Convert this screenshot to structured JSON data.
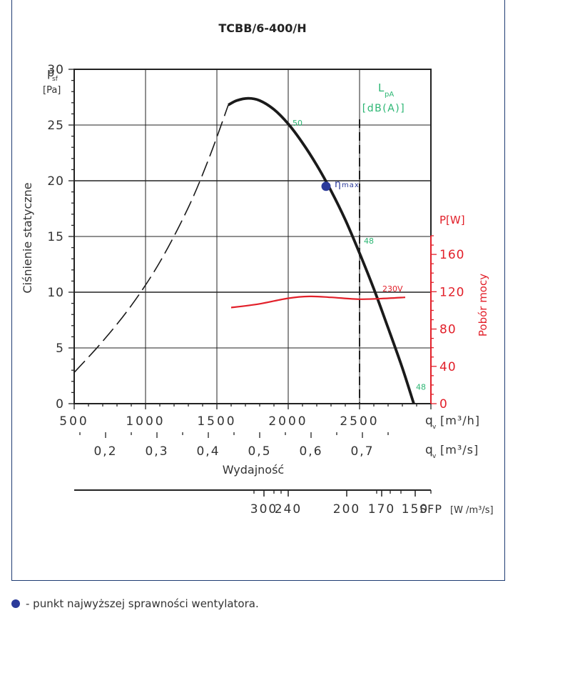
{
  "chart_data": {
    "type": "line",
    "title": "TCBB/6-400/H",
    "xlabel": "Wydajność",
    "ylabel": "Ciśnienie statyczne",
    "y_unit_symbol": "p",
    "y_unit_sub": "sf",
    "y_unit": "[Pa]",
    "ylim": [
      0,
      30
    ],
    "y_ticks": [
      "0",
      "5",
      "10",
      "15",
      "20",
      "25",
      "30"
    ],
    "x_axis_m3h": {
      "xlim": [
        500,
        3000
      ],
      "ticks": [
        {
          "v": 500,
          "label": "500"
        },
        {
          "v": 1000,
          "label": "1000"
        },
        {
          "v": 1500,
          "label": "1500"
        },
        {
          "v": 2000,
          "label": "2000"
        },
        {
          "v": 2500,
          "label": "2500"
        }
      ],
      "unit_symbol": "q",
      "unit_sub": "v",
      "unit": "[m³/h]"
    },
    "x_axis_m3s": {
      "ticks": [
        {
          "v": 0.2,
          "label": "0,2"
        },
        {
          "v": 0.3,
          "label": "0,3"
        },
        {
          "v": 0.4,
          "label": "0,4"
        },
        {
          "v": 0.5,
          "label": "0,5"
        },
        {
          "v": 0.6,
          "label": "0,6"
        },
        {
          "v": 0.7,
          "label": "0,7"
        }
      ],
      "unit_symbol": "q",
      "unit_sub": "v",
      "unit": "[m³/s]"
    },
    "sfp_axis": {
      "unit": "SFP",
      "unit_detail": "[W /m³/s]",
      "ticks": [
        {
          "q": 1830,
          "label": "300"
        },
        {
          "q": 2000,
          "label": "240"
        },
        {
          "q": 2410,
          "label": "200"
        },
        {
          "q": 2655,
          "label": "170"
        },
        {
          "q": 2890,
          "label": "150"
        }
      ]
    },
    "power_axis": {
      "label": "Pobór mocy",
      "unit": "P[W]",
      "ylim": [
        0,
        180
      ],
      "ticks": [
        "0",
        "40",
        "80",
        "120",
        "160"
      ]
    },
    "lpa_label": "L",
    "lpa_sub": "pA",
    "lpa_unit": "[dB(A)]",
    "series": [
      {
        "role": "pressure_unstable",
        "style": "dashed",
        "x": [
          500,
          700,
          900,
          1100,
          1300,
          1450,
          1580
        ],
        "y": [
          2.8,
          5.6,
          8.8,
          12.7,
          17.6,
          22.2,
          26.8
        ]
      },
      {
        "role": "pressure",
        "style": "solid",
        "x": [
          1580,
          1640,
          1720,
          1800,
          1900,
          2000,
          2100,
          2200,
          2300,
          2400,
          2500,
          2600,
          2700,
          2800,
          2880
        ],
        "y": [
          26.8,
          27.2,
          27.4,
          27.2,
          26.4,
          25.1,
          23.4,
          21.4,
          19.1,
          16.5,
          13.5,
          10.3,
          6.8,
          3.2,
          0
        ]
      },
      {
        "name": "230V",
        "role": "power",
        "style": "solid",
        "x": [
          1600,
          1800,
          2000,
          2150,
          2300,
          2500,
          2700,
          2820
        ],
        "y": [
          103,
          107,
          113,
          115,
          114,
          112,
          113,
          114
        ]
      }
    ],
    "eta_max": {
      "x": 2265,
      "y": 19.5,
      "label": "η",
      "label_sub": "max"
    },
    "lpa_marks": [
      {
        "x": 2010,
        "y": 25.2,
        "label": "50"
      },
      {
        "x": 2510,
        "y": 14.6,
        "label": "48"
      },
      {
        "x": 2875,
        "y": 1.5,
        "label": "48"
      }
    ],
    "marker_line_x": 2500,
    "colors": {
      "pressure": "#1a1a1a",
      "power": "#e2202a",
      "lpa": "#2bb673",
      "eta": "#2b3a9a",
      "frame": "#1f3c73",
      "power_axis": "#e2202a"
    }
  },
  "footnote": {
    "text": "- punkt najwyższej sprawności wentylatora.",
    "dot_color": "#2b3a9a"
  }
}
